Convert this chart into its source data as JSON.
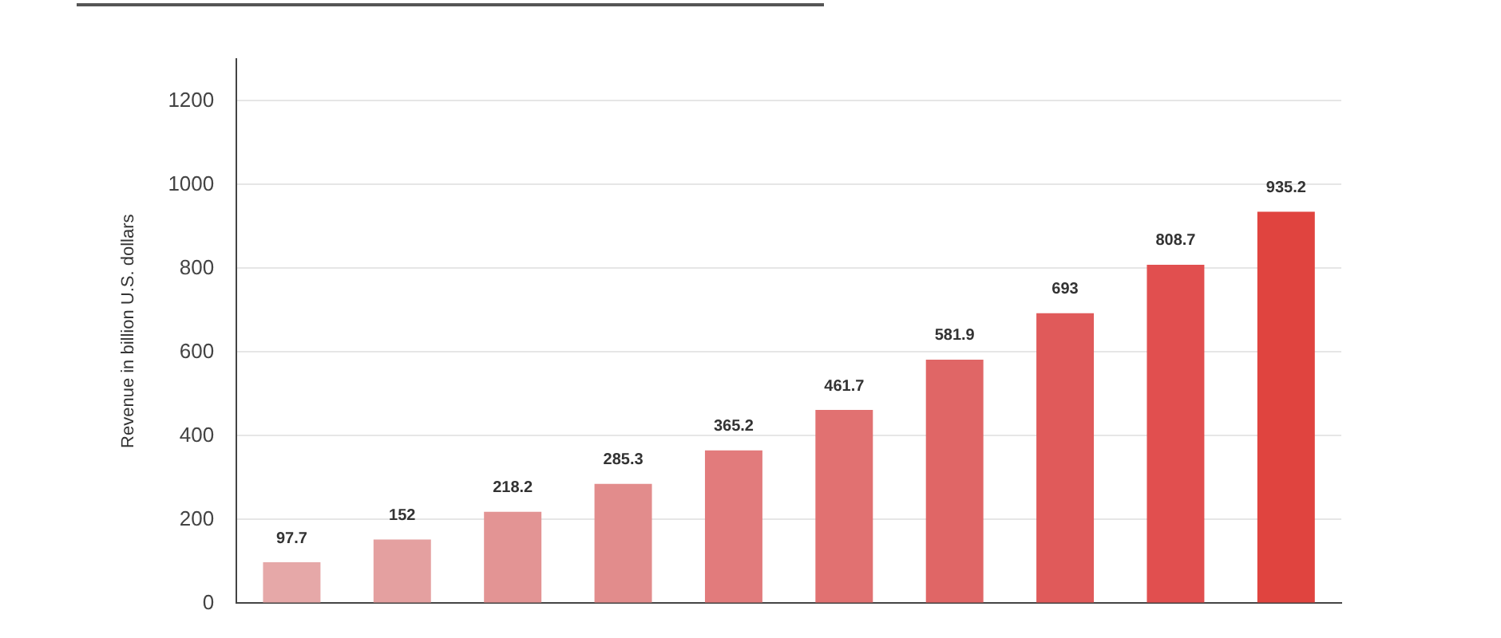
{
  "chart_data": {
    "type": "bar",
    "ylabel": "Revenue in billion U.S. dollars",
    "categories": [
      null,
      null,
      null,
      null,
      null,
      null,
      null,
      null,
      null,
      null
    ],
    "values": [
      97.7,
      152,
      218.2,
      285.3,
      365.2,
      461.7,
      581.9,
      693,
      808.7,
      935.2
    ],
    "colors": [
      "#e6a8a8",
      "#e4a0a0",
      "#e39494",
      "#e28c8c",
      "#e27b7c",
      "#e17171",
      "#e06666",
      "#e05a5a",
      "#e14f4f",
      "#e0443f"
    ],
    "ylim": [
      0,
      1300
    ],
    "yticks": [
      0,
      200,
      400,
      600,
      800,
      1000,
      1200
    ],
    "grid": "y",
    "data_labels": true,
    "tick_labels": "y",
    "legend": false
  }
}
